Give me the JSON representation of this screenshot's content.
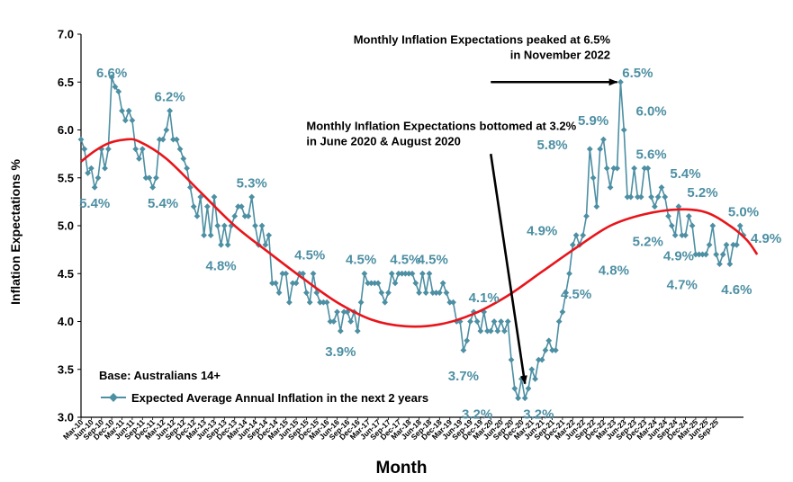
{
  "chart_data": {
    "type": "line",
    "title": "",
    "xlabel": "Month",
    "ylabel": "Inflation Expectations %",
    "ylim": [
      3.0,
      7.0
    ],
    "yticks": [
      "3.0",
      "3.5",
      "4.0",
      "4.5",
      "5.0",
      "5.5",
      "6.0",
      "6.5",
      "7.0"
    ],
    "grid": false,
    "legend": {
      "placement": "bottom-left",
      "base_note": "Base: Australians 14+",
      "entries": [
        "Expected Average Annual Inflation in the next 2 years"
      ]
    },
    "x_tick_labels": [
      "Mar-10",
      "Jun-10",
      "Sep-10",
      "Dec-10",
      "Mar-11",
      "Jun-11",
      "Sep-11",
      "Dec-11",
      "Mar-12",
      "Jun-12",
      "Sep-12",
      "Dec-12",
      "Mar-13",
      "Jun-13",
      "Sep-13",
      "Dec-13",
      "Mar-14",
      "Jun-14",
      "Sep-14",
      "Dec-14",
      "Mar-15",
      "Jun-15",
      "Sep-15",
      "Dec-15",
      "Mar-16",
      "Jun-16",
      "Sep-16",
      "Dec-16",
      "Mar-17",
      "Jun-17",
      "Sep-17",
      "Dec-17",
      "Mar-18",
      "Jun-18",
      "Sep-18",
      "Dec-18",
      "Mar-19",
      "Jun-19",
      "Sep-19",
      "Dec-19",
      "Mar-20",
      "Jun-20",
      "Sep-20",
      "Dec-20",
      "Mar-21",
      "Jun-21",
      "Sep-21",
      "Dec-21",
      "Mar-22",
      "Jun-22",
      "Sep-22",
      "Dec-22",
      "Mar-23",
      "Jun-23",
      "Sep-23",
      "Dec-23",
      "Mar-24",
      "Jun-24",
      "Sep-24",
      "Dec-24",
      "Mar-25",
      "Jun-25",
      "Sep-25"
    ],
    "series": [
      {
        "name": "Expected Average Annual Inflation in the next 2 years",
        "color": "#4d8fa3",
        "start": "Mar-10",
        "frequency": "monthly",
        "values": [
          5.9,
          5.8,
          5.55,
          5.6,
          5.4,
          5.5,
          5.8,
          5.6,
          5.8,
          6.55,
          6.45,
          6.4,
          6.2,
          6.1,
          6.2,
          6.1,
          5.8,
          5.7,
          5.8,
          5.5,
          5.5,
          5.4,
          5.5,
          5.9,
          5.9,
          6.0,
          6.2,
          5.9,
          5.9,
          5.8,
          5.7,
          5.6,
          5.4,
          5.2,
          5.1,
          5.3,
          4.9,
          5.2,
          4.9,
          5.3,
          5.0,
          4.8,
          5.0,
          4.8,
          5.0,
          5.1,
          5.2,
          5.2,
          5.1,
          5.1,
          5.3,
          5.0,
          4.8,
          5.0,
          4.8,
          4.9,
          4.4,
          4.4,
          4.3,
          4.5,
          4.5,
          4.2,
          4.4,
          4.4,
          4.5,
          4.5,
          4.3,
          4.2,
          4.5,
          4.3,
          4.2,
          4.2,
          4.2,
          4.0,
          4.0,
          4.1,
          3.9,
          4.1,
          4.1,
          4.0,
          4.1,
          3.9,
          4.2,
          4.5,
          4.4,
          4.4,
          4.4,
          4.4,
          4.3,
          4.2,
          4.3,
          4.5,
          4.4,
          4.5,
          4.5,
          4.5,
          4.5,
          4.5,
          4.4,
          4.3,
          4.5,
          4.3,
          4.5,
          4.3,
          4.3,
          4.3,
          4.4,
          4.3,
          4.2,
          4.2,
          4.0,
          4.0,
          3.7,
          3.8,
          4.0,
          4.1,
          4.0,
          3.9,
          4.1,
          3.9,
          3.9,
          4.0,
          3.9,
          4.0,
          3.9,
          4.0,
          3.6,
          3.3,
          3.2,
          3.4,
          3.2,
          3.3,
          3.5,
          3.4,
          3.6,
          3.6,
          3.7,
          3.8,
          3.7,
          3.7,
          4.0,
          4.1,
          4.3,
          4.5,
          4.8,
          4.9,
          4.8,
          4.9,
          5.1,
          5.8,
          5.5,
          5.2,
          5.8,
          5.9,
          5.6,
          5.4,
          5.6,
          5.6,
          6.5,
          6.0,
          5.3,
          5.3,
          5.6,
          5.3,
          5.3,
          5.6,
          5.6,
          5.3,
          5.2,
          5.3,
          5.4,
          5.3,
          5.1,
          5.0,
          4.9,
          5.2,
          4.9,
          4.9,
          5.1,
          5.0,
          4.7,
          4.7,
          4.7,
          4.7,
          4.8,
          5.0,
          4.7,
          4.6,
          4.7,
          4.8,
          4.6,
          4.8,
          4.8,
          5.0,
          4.9
        ]
      },
      {
        "name": "trend",
        "color": "#e8151b",
        "type": "smooth-trend",
        "control_points": [
          [
            0,
            5.67
          ],
          [
            4,
            5.78
          ],
          [
            8,
            5.86
          ],
          [
            13,
            5.9
          ],
          [
            17,
            5.88
          ],
          [
            25,
            5.7
          ],
          [
            35,
            5.35
          ],
          [
            45,
            5.0
          ],
          [
            55,
            4.72
          ],
          [
            65,
            4.45
          ],
          [
            75,
            4.2
          ],
          [
            85,
            4.02
          ],
          [
            95,
            3.95
          ],
          [
            105,
            3.97
          ],
          [
            115,
            4.08
          ],
          [
            125,
            4.27
          ],
          [
            135,
            4.52
          ],
          [
            145,
            4.77
          ],
          [
            155,
            5.0
          ],
          [
            165,
            5.12
          ],
          [
            175,
            5.17
          ],
          [
            183,
            5.14
          ],
          [
            190,
            5.0
          ],
          [
            195,
            4.85
          ],
          [
            198,
            4.7
          ]
        ]
      }
    ],
    "data_labels": [
      {
        "text": "6.6%",
        "idx": 9,
        "y": 6.55,
        "pos": "above"
      },
      {
        "text": "5.4%",
        "idx": 4,
        "y": 5.3,
        "pos": "below"
      },
      {
        "text": "5.4%",
        "idx": 24,
        "y": 5.3,
        "pos": "below"
      },
      {
        "text": "6.2%",
        "idx": 26,
        "y": 6.3,
        "pos": "above"
      },
      {
        "text": "4.8%",
        "idx": 41,
        "y": 4.65,
        "pos": "below"
      },
      {
        "text": "5.3%",
        "idx": 50,
        "y": 5.4,
        "pos": "above"
      },
      {
        "text": "4.5%",
        "idx": 67,
        "y": 4.65,
        "pos": "above"
      },
      {
        "text": "3.9%",
        "idx": 76,
        "y": 3.75,
        "pos": "below"
      },
      {
        "text": "4.5%",
        "idx": 82,
        "y": 4.6,
        "pos": "above"
      },
      {
        "text": "4.5%",
        "idx": 95,
        "y": 4.6,
        "pos": "above"
      },
      {
        "text": "4.5%",
        "idx": 103,
        "y": 4.6,
        "pos": "above"
      },
      {
        "text": "4.1%",
        "idx": 118,
        "y": 4.2,
        "pos": "above"
      },
      {
        "text": "3.7%",
        "idx": 112,
        "y": 3.5,
        "pos": "below"
      },
      {
        "text": "3.2%",
        "idx": 116,
        "y": 3.1,
        "pos": "below"
      },
      {
        "text": "3.2%",
        "idx": 134,
        "y": 3.1,
        "pos": "below"
      },
      {
        "text": "4.9%",
        "idx": 135,
        "y": 4.9,
        "pos": "above"
      },
      {
        "text": "4.5%",
        "idx": 145,
        "y": 4.35,
        "pos": "below"
      },
      {
        "text": "4.8%",
        "idx": 156,
        "y": 4.6,
        "pos": "below"
      },
      {
        "text": "5.8%",
        "idx": 138,
        "y": 5.8,
        "pos": "above"
      },
      {
        "text": "5.9%",
        "idx": 150,
        "y": 6.05,
        "pos": "above"
      },
      {
        "text": "6.5%",
        "idx": 163,
        "y": 6.55,
        "pos": "above"
      },
      {
        "text": "6.0%",
        "idx": 167,
        "y": 6.15,
        "pos": "above"
      },
      {
        "text": "5.6%",
        "idx": 167,
        "y": 5.7,
        "pos": "above"
      },
      {
        "text": "5.2%",
        "idx": 166,
        "y": 4.9,
        "pos": "below"
      },
      {
        "text": "5.4%",
        "idx": 177,
        "y": 5.5,
        "pos": "above"
      },
      {
        "text": "5.2%",
        "idx": 182,
        "y": 5.3,
        "pos": "above"
      },
      {
        "text": "4.9%",
        "idx": 175,
        "y": 4.75,
        "pos": "below"
      },
      {
        "text": "4.7%",
        "idx": 176,
        "y": 4.45,
        "pos": "below"
      },
      {
        "text": "4.6%",
        "idx": 192,
        "y": 4.4,
        "pos": "below"
      },
      {
        "text": "5.0%",
        "idx": 194,
        "y": 5.1,
        "pos": "above"
      },
      {
        "text": "4.9%",
        "idx": 200,
        "y": 4.82,
        "pos": "right"
      }
    ],
    "annotations": [
      {
        "lines": [
          "Monthly Inflation Expectations peaked at 6.5%",
          "in November 2022"
        ],
        "align": "end",
        "anchor_idx": 155,
        "y": 6.9
      },
      {
        "lines": [
          "Monthly Inflation Expectations bottomed at 3.2%",
          "in June 2020 & August 2020"
        ],
        "align": "start",
        "anchor_idx": 66,
        "y": 6.0
      }
    ],
    "arrows": [
      {
        "from": [
          120,
          6.5
        ],
        "to": [
          157,
          6.5
        ]
      },
      {
        "from": [
          120,
          5.75
        ],
        "to": [
          130,
          3.35
        ]
      }
    ]
  }
}
